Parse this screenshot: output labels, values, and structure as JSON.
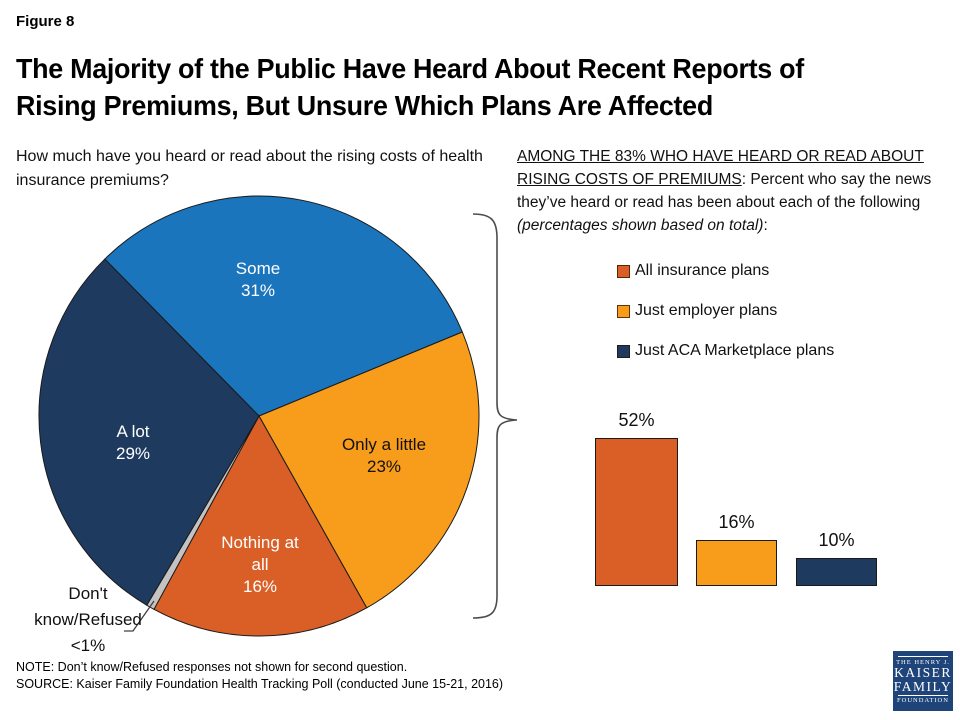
{
  "figure_label": "Figure 8",
  "title": {
    "line1": "The Majority of the Public Have Heard About Recent Reports of",
    "line2": "Rising Premiums, But Unsure Which Plans Are Affected"
  },
  "pie_section": {
    "question": "How much have you heard or read about the rising costs of health insurance premiums?",
    "labels": {
      "some": {
        "line1": "Some",
        "line2": "31%"
      },
      "only_a_little": {
        "line1": "Only a little",
        "line2": "23%"
      },
      "nothing_at_all": {
        "line1": "Nothing at",
        "line2": "all",
        "line3": "16%"
      },
      "a_lot": {
        "line1": "A lot",
        "line2": "29%"
      },
      "dont_know": {
        "line1": "Don't",
        "line2": "know/Refused",
        "line3": "<1%"
      }
    }
  },
  "bar_section": {
    "intro_underlined": "AMONG THE 83% WHO HAVE HEARD OR READ ABOUT RISING COSTS OF PREMIUMS",
    "intro_mid": ": Percent who say the news they’ve heard or read has been about each of the following ",
    "intro_italic": "(percentages shown based on total)",
    "intro_end": ":"
  },
  "footer": {
    "note": "NOTE: Don’t know/Refused responses not shown for second question.",
    "source": "SOURCE: Kaiser Family Foundation Health Tracking Poll (conducted June 15-21, 2016)"
  },
  "logo": {
    "top": "THE HENRY J.",
    "name1": "KAISER",
    "name2": "FAMILY",
    "bottom": "FOUNDATION"
  },
  "theme": {
    "blue": "#1B75BC",
    "navy": "#1F3A5F",
    "orange": "#F89C1C",
    "dark_orange": "#D95F27",
    "gray": "#C3C3C3",
    "slice_border": "#1A1A1A",
    "brace_color": "#4D4D4D",
    "leader_color": "#404040"
  },
  "chart_data": [
    {
      "type": "pie",
      "title": "How much have you heard or read about the rising costs of health insurance premiums?",
      "start_angle_deg": -44.5,
      "direction": "clockwise",
      "slices": [
        {
          "label": "Some",
          "value": 31,
          "display": "31%",
          "color": "#1B75BC"
        },
        {
          "label": "Only a little",
          "value": 23,
          "display": "23%",
          "color": "#F89C1C"
        },
        {
          "label": "Nothing at all",
          "value": 16,
          "display": "16%",
          "color": "#D95F27"
        },
        {
          "label": "Don't know/Refused",
          "value": 0.6,
          "display": "<1%",
          "color": "#C3C3C3"
        },
        {
          "label": "A lot",
          "value": 29,
          "display": "29%",
          "color": "#1F3A5F"
        }
      ]
    },
    {
      "type": "bar",
      "subtitle": "AMONG THE 83% WHO HAVE HEARD OR READ ABOUT RISING COSTS OF PREMIUMS: Percent who say the news they’ve heard or read has been about each of the following (percentages shown based on total):",
      "categories": [
        "All insurance plans",
        "Just employer plans",
        "Just ACA Marketplace plans"
      ],
      "values": [
        52,
        16,
        10
      ],
      "value_labels": [
        "52%",
        "16%",
        "10%"
      ],
      "colors": [
        "#D95F27",
        "#F89C1C",
        "#1F3A5F"
      ],
      "ylim": [
        0,
        60
      ],
      "axis_lines": "none",
      "legend_position": "above"
    }
  ]
}
